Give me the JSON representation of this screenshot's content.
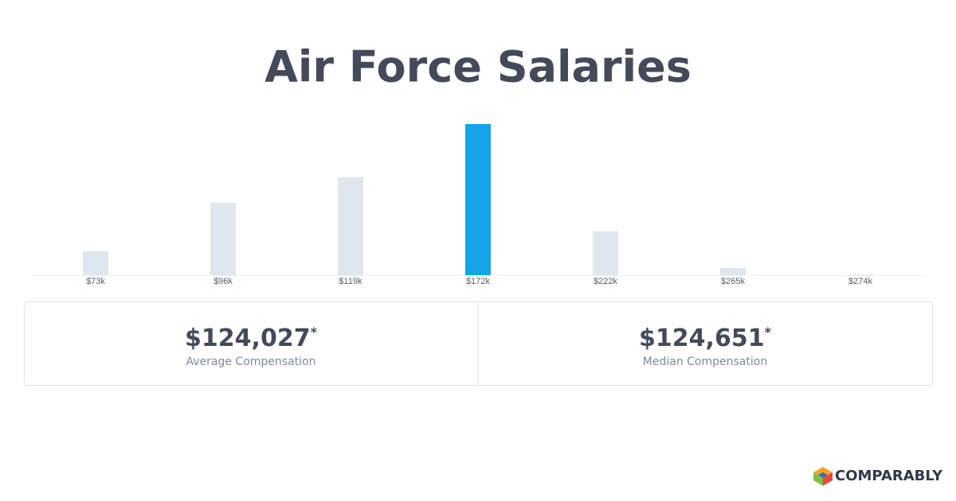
{
  "chart_data": {
    "type": "bar",
    "title": "Air Force Salaries",
    "categories": [
      "$73k",
      "$96k",
      "$119k",
      "$172k",
      "$222k",
      "$265k",
      "$274k"
    ],
    "values": [
      30,
      91,
      123,
      190,
      55,
      9,
      1
    ],
    "colors": [
      "#dfe6ee",
      "#dfe6ee",
      "#dfe6ee",
      "#12a5e8",
      "#dfe6ee",
      "#dfe6ee",
      "#dfe6ee"
    ],
    "ylim": [
      0,
      190
    ]
  },
  "stats": [
    {
      "value": "$124,027",
      "mark": "*",
      "label": "Average Compensation"
    },
    {
      "value": "$124,651",
      "mark": "*",
      "label": "Median Compensation"
    }
  ],
  "brand": "COMPARABLY"
}
